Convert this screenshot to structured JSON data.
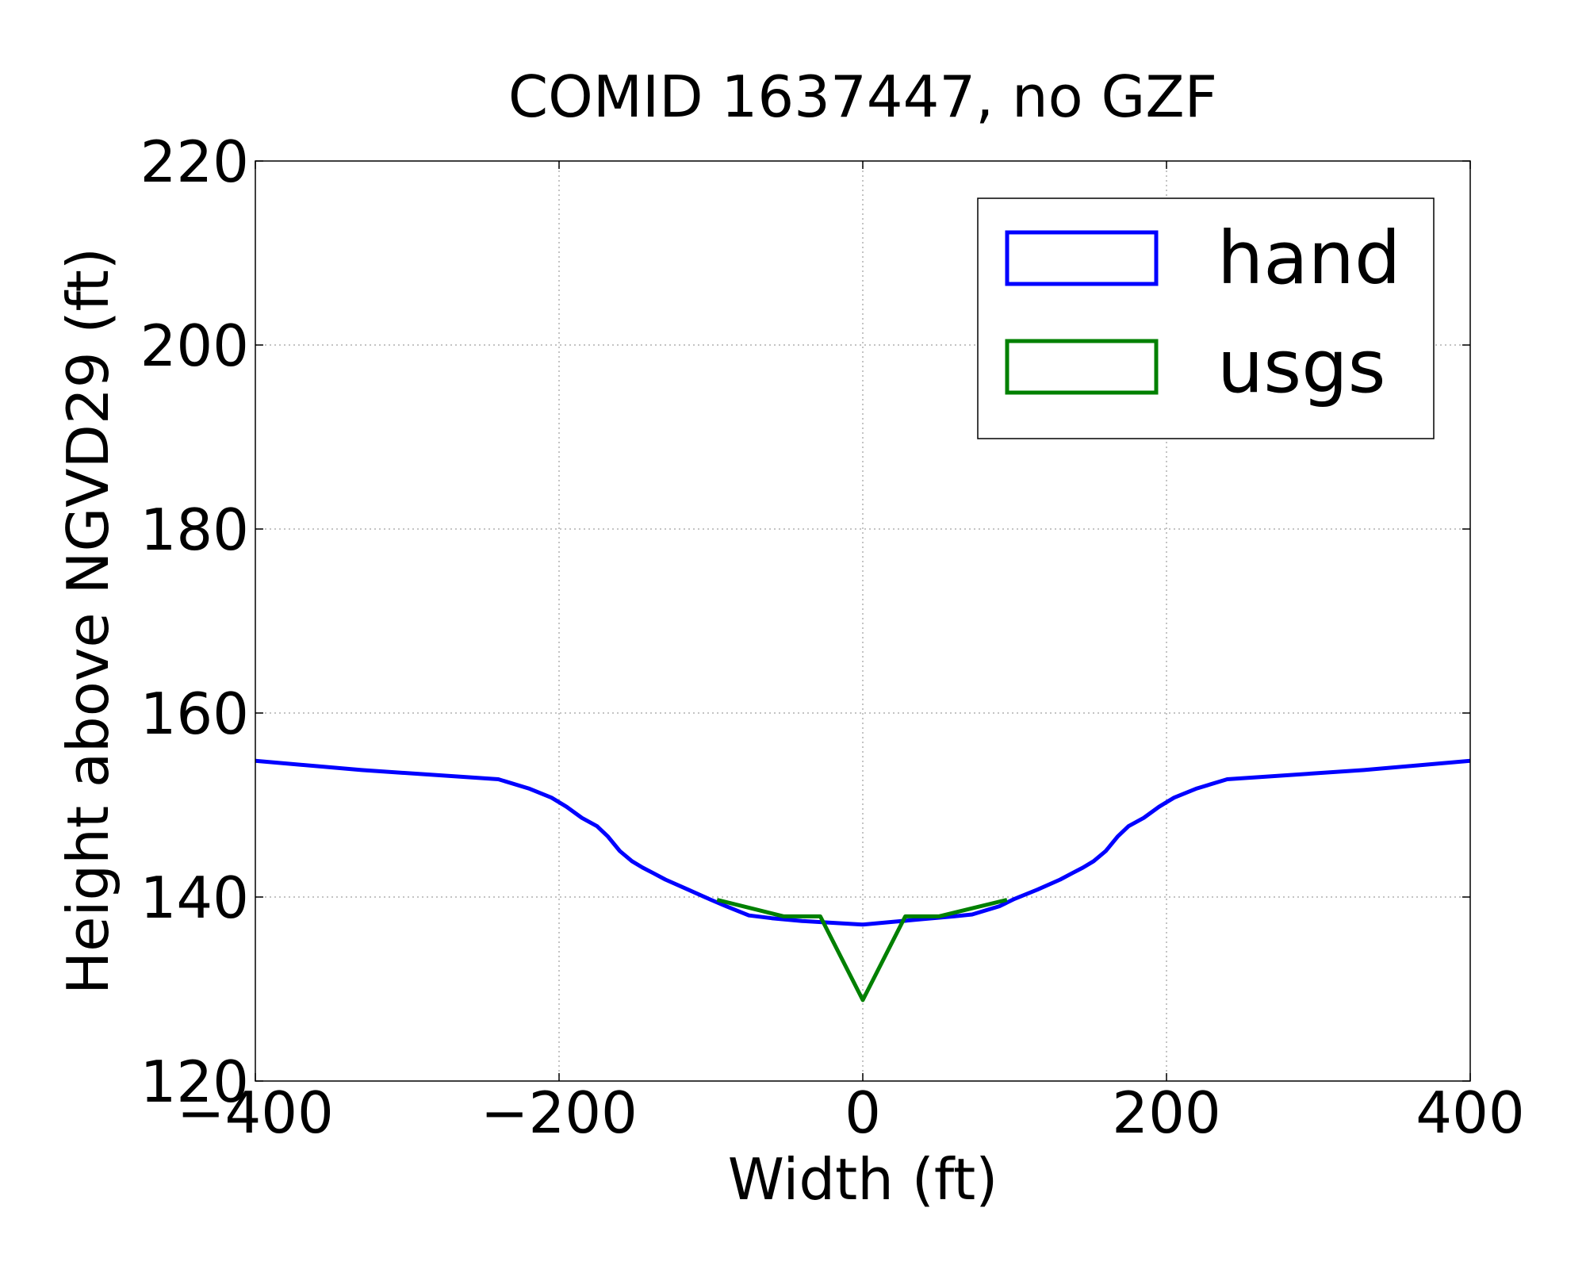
{
  "chart_data": {
    "type": "line",
    "title": "COMID 1637447, no GZF",
    "xlabel": "Width (ft)",
    "ylabel": "Height above NGVD29 (ft)",
    "xlim": [
      -400,
      400
    ],
    "ylim": [
      120,
      220
    ],
    "xticks": [
      -400,
      -200,
      0,
      200,
      400
    ],
    "xtick_labels": [
      "−400",
      "−200",
      "0",
      "200",
      "400"
    ],
    "yticks": [
      120,
      140,
      160,
      180,
      200,
      220
    ],
    "ytick_labels": [
      "120",
      "140",
      "160",
      "180",
      "200",
      "220"
    ],
    "grid": true,
    "legend_position": "top-right",
    "series": [
      {
        "name": "hand",
        "color": "#0000ff",
        "x": [
          -400,
          -330,
          -240,
          -220,
          -205,
          -195,
          -185,
          -175,
          -168,
          -160,
          -152,
          -145,
          -138,
          -130,
          -115,
          -100,
          -90,
          -75,
          -60,
          -40,
          -20,
          0,
          20,
          40,
          60,
          72,
          90,
          100,
          115,
          130,
          138,
          145,
          152,
          160,
          168,
          175,
          185,
          195,
          205,
          220,
          240,
          330,
          400
        ],
        "y": [
          154.8,
          153.8,
          152.8,
          151.8,
          150.8,
          149.8,
          148.6,
          147.7,
          146.6,
          145,
          143.9,
          143.2,
          142.6,
          141.9,
          140.8,
          139.7,
          139,
          138,
          137.7,
          137.4,
          137.2,
          137,
          137.3,
          137.6,
          137.9,
          138.1,
          139,
          139.8,
          140.8,
          141.9,
          142.6,
          143.2,
          143.9,
          145,
          146.6,
          147.7,
          148.6,
          149.8,
          150.8,
          151.8,
          152.8,
          153.8,
          154.8
        ]
      },
      {
        "name": "usgs",
        "color": "#008000",
        "x": [
          -96,
          -52,
          -28,
          0,
          28,
          50,
          95
        ],
        "y": [
          139.7,
          137.9,
          137.9,
          128.8,
          137.9,
          137.9,
          139.7
        ]
      }
    ]
  },
  "legend": {
    "items": [
      {
        "label": "hand",
        "color": "#0000ff"
      },
      {
        "label": "usgs",
        "color": "#008000"
      }
    ]
  }
}
